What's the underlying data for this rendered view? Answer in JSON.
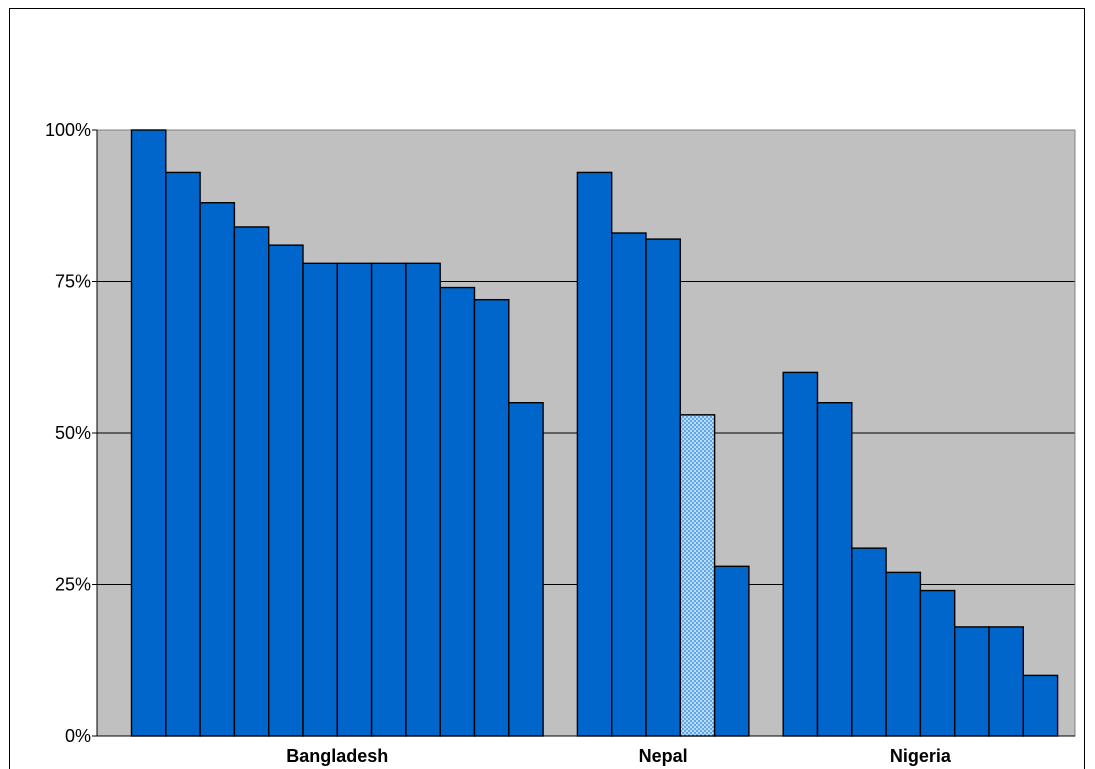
{
  "chart_data": {
    "type": "bar",
    "title": "",
    "xlabel": "",
    "ylabel": "",
    "ylim": [
      0,
      100
    ],
    "y_ticks": [
      "0%",
      "25%",
      "50%",
      "75%",
      "100%"
    ],
    "y_tick_values": [
      0,
      25,
      50,
      75,
      100
    ],
    "grid": true,
    "groups": [
      {
        "label": "Bangladesh",
        "values": [
          100,
          93,
          88,
          84,
          81,
          78,
          78,
          78,
          78,
          74,
          72,
          55
        ],
        "patterned": [
          false,
          false,
          false,
          false,
          false,
          false,
          false,
          false,
          false,
          false,
          false,
          false
        ]
      },
      {
        "label": "Nepal",
        "values": [
          93,
          83,
          82,
          53,
          28
        ],
        "patterned": [
          false,
          false,
          false,
          true,
          false
        ]
      },
      {
        "label": "Nigeria",
        "values": [
          60,
          55,
          31,
          27,
          24,
          18,
          18,
          10
        ],
        "patterned": [
          false,
          false,
          false,
          false,
          false,
          false,
          false,
          false
        ]
      }
    ],
    "colors": {
      "bar_fill": "#0066CC",
      "bar_stroke": "#000000",
      "plot_background": "#C0C0C0",
      "gridline": "#000000",
      "patterned_fill": "#5FA8E8"
    }
  }
}
